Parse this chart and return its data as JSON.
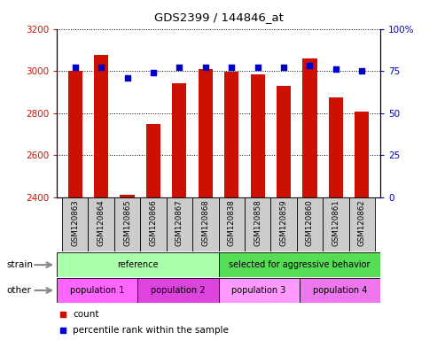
{
  "title": "GDS2399 / 144846_at",
  "samples": [
    "GSM120863",
    "GSM120864",
    "GSM120865",
    "GSM120866",
    "GSM120867",
    "GSM120868",
    "GSM120838",
    "GSM120858",
    "GSM120859",
    "GSM120860",
    "GSM120861",
    "GSM120862"
  ],
  "counts": [
    3000,
    3075,
    2410,
    2750,
    2940,
    3010,
    2995,
    2985,
    2930,
    3060,
    2875,
    2805
  ],
  "percentiles": [
    77,
    77,
    71,
    74,
    77,
    77,
    77,
    77,
    77,
    78,
    76,
    75
  ],
  "ylim_left": [
    2400,
    3200
  ],
  "ylim_right": [
    0,
    100
  ],
  "yticks_left": [
    2400,
    2600,
    2800,
    3000,
    3200
  ],
  "yticks_right": [
    0,
    25,
    50,
    75,
    100
  ],
  "bar_color": "#cc1100",
  "dot_color": "#0000cc",
  "strain_groups": [
    {
      "label": "reference",
      "start": 0,
      "end": 6,
      "color": "#aaffaa"
    },
    {
      "label": "selected for aggressive behavior",
      "start": 6,
      "end": 12,
      "color": "#55dd55"
    }
  ],
  "other_groups": [
    {
      "label": "population 1",
      "start": 0,
      "end": 3,
      "color": "#ff66ff"
    },
    {
      "label": "population 2",
      "start": 3,
      "end": 6,
      "color": "#dd44dd"
    },
    {
      "label": "population 3",
      "start": 6,
      "end": 9,
      "color": "#ff99ff"
    },
    {
      "label": "population 4",
      "start": 9,
      "end": 12,
      "color": "#ee77ee"
    }
  ],
  "strain_label": "strain",
  "other_label": "other",
  "legend_count_label": "count",
  "legend_pct_label": "percentile rank within the sample",
  "xtick_bg": "#cccccc"
}
